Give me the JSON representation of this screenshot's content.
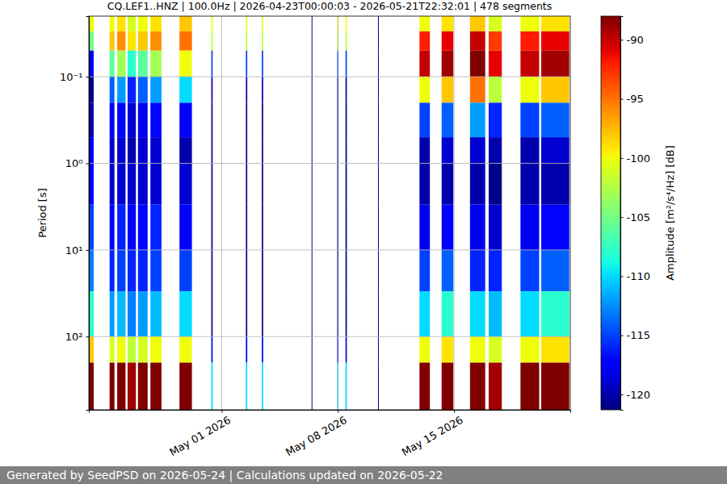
{
  "chart_data": {
    "type": "heatmap",
    "title": "CQ.LEF1..HNZ | 100.0Hz | 2026-04-23T00:00:03 - 2026-05-21T22:32:01 | 478 segments",
    "y_label": "Period [s]",
    "annotations": [
      "Generated by SeedPSD on 2026-05-24 | Calculations updated on 2026-05-22"
    ],
    "log": "y",
    "grid": true,
    "xlim": [
      "2026-04-23T00:00",
      "2026-05-22T00:00"
    ],
    "xticks": [
      {
        "value": "2026-05-01T00:00",
        "label": "May 01 2026"
      },
      {
        "value": "2026-05-08T00:00",
        "label": "May 08 2026"
      },
      {
        "value": "2026-05-15T00:00",
        "label": "May 15 2026"
      }
    ],
    "ylim": [
      0.02,
      700
    ],
    "yticks": [
      {
        "value": 0.1,
        "label": "10⁻¹"
      },
      {
        "value": 1,
        "label": "10⁰"
      },
      {
        "value": 10,
        "label": "10¹"
      },
      {
        "value": 100,
        "label": "10²"
      }
    ],
    "y_edges": [
      0.02,
      0.03,
      0.05,
      0.1,
      0.2,
      0.5,
      1,
      3,
      10,
      30,
      100,
      200,
      700
    ],
    "x_start": [
      "2026-04-23T00:00",
      "2026-04-24T06:00",
      "2026-04-24T17:00",
      "2026-04-25T08:00",
      "2026-04-25T23:00",
      "2026-04-26T17:00",
      "2026-04-28T11:00",
      "2026-04-30T09:00",
      "2026-05-02T11:00",
      "2026-05-03T10:00",
      "2026-05-06T10:00",
      "2026-05-07T23:00",
      "2026-05-08T11:00",
      "2026-05-10T10:00",
      "2026-05-12T22:00",
      "2026-05-14T06:00",
      "2026-05-15T23:00",
      "2026-05-17T02:00",
      "2026-05-19T00:00",
      "2026-05-20T06:00"
    ],
    "x_end": [
      "2026-04-23T07:00",
      "2026-04-24T13:00",
      "2026-04-25T05:00",
      "2026-04-25T20:00",
      "2026-04-26T13:00",
      "2026-04-27T09:00",
      "2026-04-29T05:00",
      "2026-04-30T11:00",
      "2026-05-02T13:00",
      "2026-05-03T12:00",
      "2026-05-06T11:00",
      "2026-05-08T01:00",
      "2026-05-08T13:00",
      "2026-05-10T11:00",
      "2026-05-13T13:00",
      "2026-05-14T23:00",
      "2026-05-16T21:00",
      "2026-05-17T21:00",
      "2026-05-20T03:00",
      "2026-05-21T22:32"
    ],
    "cells": [
      [
        -100,
        -105,
        -118,
        -121,
        -120,
        -118,
        -117,
        -115,
        -113,
        -108,
        -98,
        -88
      ],
      [
        -100,
        -98,
        -106,
        -114,
        -118,
        -119,
        -119,
        -117,
        -116,
        -112,
        -101,
        -88
      ],
      [
        -99,
        -96,
        -103,
        -112,
        -117,
        -119,
        -119,
        -116,
        -115,
        -111,
        -100,
        -88
      ],
      [
        -101,
        -99,
        -108,
        -116,
        -119,
        -120,
        -119,
        -117,
        -116,
        -113,
        -102,
        -89
      ],
      [
        -100,
        -98,
        -106,
        -114,
        -118,
        -119,
        -119,
        -117,
        -116,
        -112,
        -101,
        -88
      ],
      [
        -99,
        -96,
        -103,
        -112,
        -117,
        -119,
        -119,
        -116,
        -115,
        -111,
        -100,
        -88
      ],
      [
        -98,
        -95,
        -100,
        -110,
        -117,
        -120,
        -119,
        -117,
        -115,
        -110,
        -100,
        -88
      ],
      [
        -100,
        -102,
        -115,
        -120,
        -121,
        -121,
        -121,
        -121,
        -121,
        -121,
        -118,
        -110
      ],
      [
        -100,
        -102,
        -115,
        -120,
        -121,
        -121,
        -121,
        -121,
        -121,
        -121,
        -118,
        -110
      ],
      [
        -100,
        -102,
        -115,
        -120,
        -121,
        -121,
        -121,
        -121,
        -121,
        -121,
        -118,
        -110
      ],
      [
        -121,
        -121,
        -121,
        -121,
        -121,
        -121,
        -121,
        -121,
        -121,
        -121,
        -121,
        -121
      ],
      [
        -100,
        -102,
        -115,
        -120,
        -121,
        -121,
        -121,
        -121,
        -121,
        -121,
        -118,
        -110
      ],
      [
        -100,
        -102,
        -115,
        -120,
        -121,
        -121,
        -121,
        -121,
        -121,
        -121,
        -118,
        -110
      ],
      [
        -121,
        -121,
        -121,
        -121,
        -121,
        -121,
        -121,
        -121,
        -121,
        -121,
        -121,
        -121
      ],
      [
        -100,
        -92,
        -90,
        -100,
        -115,
        -120,
        -120,
        -118,
        -115,
        -110,
        -100,
        -88
      ],
      [
        -99,
        -91,
        -89,
        -98,
        -114,
        -119,
        -120,
        -117,
        -114,
        -108,
        -99,
        -88
      ],
      [
        -98,
        -90,
        -88,
        -95,
        -112,
        -119,
        -120,
        -118,
        -116,
        -110,
        -100,
        -88
      ],
      [
        -101,
        -93,
        -91,
        -102,
        -116,
        -120,
        -121,
        -119,
        -116,
        -111,
        -101,
        -89
      ],
      [
        -100,
        -92,
        -90,
        -100,
        -115,
        -120,
        -120,
        -118,
        -115,
        -110,
        -100,
        -88
      ],
      [
        -99,
        -91,
        -89,
        -98,
        -114,
        -119,
        -120,
        -117,
        -114,
        -108,
        -99,
        -88
      ]
    ],
    "colorbar": {
      "label": "Amplitude [m²/s⁴/Hz] [dB]",
      "range": [
        -121.3,
        -88
      ],
      "ticks": [
        -90,
        -95,
        -100,
        -105,
        -110,
        -115,
        -120
      ]
    }
  }
}
